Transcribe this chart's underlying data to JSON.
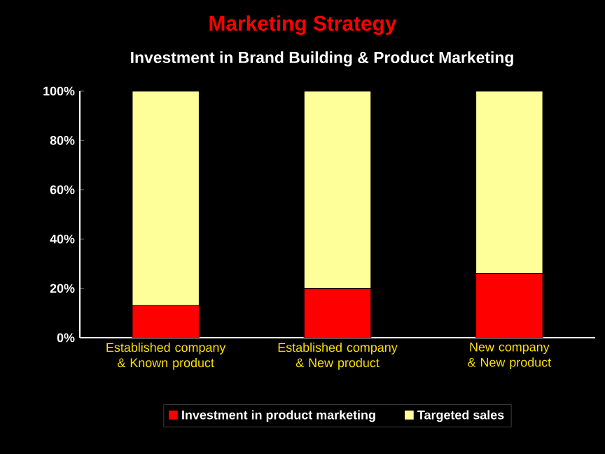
{
  "chart_data": {
    "type": "bar",
    "title": "Marketing Strategy",
    "subtitle": "Investment in Brand Building & Product Marketing",
    "categories": [
      "Established company & Known product",
      "Established company & New product",
      "New company & New product"
    ],
    "series": [
      {
        "name": "Investment in product marketing",
        "color": "#ff0000",
        "values": [
          13,
          20,
          26
        ]
      },
      {
        "name": "Targeted sales",
        "color": "#ffff99",
        "values": [
          87,
          80,
          74
        ]
      }
    ],
    "stacked": true,
    "ylim": [
      0,
      100
    ],
    "yticks": [
      {
        "value": 0,
        "label": "0%"
      },
      {
        "value": 20,
        "label": "20%"
      },
      {
        "value": 40,
        "label": "40%"
      },
      {
        "value": 60,
        "label": "60%"
      },
      {
        "value": 80,
        "label": "80%"
      },
      {
        "value": 100,
        "label": "100%"
      }
    ],
    "legend": "bottom"
  }
}
